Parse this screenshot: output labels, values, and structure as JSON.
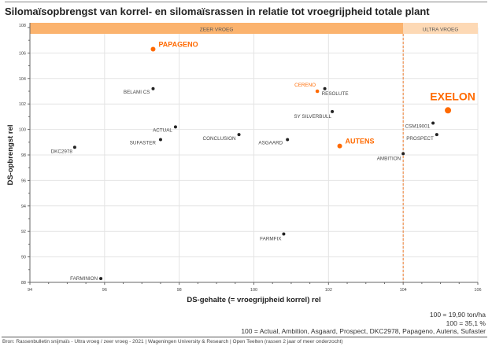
{
  "title": "Silomaïsopbrengst van korrel- en silomaïsrassen in relatie tot vroegrijpheid totale plant",
  "chart_data": {
    "type": "scatter",
    "title": "Silomaïsopbrengst van korrel- en silomaïsrassen in relatie tot vroegrijpheid totale plant",
    "xlabel": "DS-gehalte (= vroegrijpheid korrel) rel",
    "ylabel": "DS-opbrengst rel",
    "xlim": [
      94,
      106
    ],
    "ylim": [
      88,
      108
    ],
    "xticks": [
      94,
      96,
      98,
      100,
      102,
      104,
      106
    ],
    "yticks": [
      88,
      90,
      92,
      94,
      96,
      98,
      100,
      102,
      104,
      106,
      108
    ],
    "grid": true,
    "bands": [
      {
        "label": "ZEER VROEG",
        "from": 94,
        "to": 104,
        "color": "#fbb36e"
      },
      {
        "label": "ULTRA VROEG",
        "from": 104,
        "to": 106,
        "color": "#fdd9b5"
      }
    ],
    "divider_x": 104,
    "points": [
      {
        "name": "PAPAGENO",
        "x": 97.3,
        "y": 106.3,
        "highlight": "big"
      },
      {
        "name": "BELAMI CS",
        "x": 97.3,
        "y": 103.2
      },
      {
        "name": "ACTUAL",
        "x": 97.9,
        "y": 100.2
      },
      {
        "name": "SUFASTER",
        "x": 97.5,
        "y": 99.2
      },
      {
        "name": "DKC2978",
        "x": 95.2,
        "y": 98.6
      },
      {
        "name": "CONCLUSION",
        "x": 99.6,
        "y": 99.6
      },
      {
        "name": "ASGAARD",
        "x": 100.9,
        "y": 99.2
      },
      {
        "name": "CERENO",
        "x": 101.7,
        "y": 103.0,
        "highlight": "small"
      },
      {
        "name": "RESOLUTE",
        "x": 101.9,
        "y": 103.2
      },
      {
        "name": "SY SILVERBULL",
        "x": 102.1,
        "y": 101.4
      },
      {
        "name": "AUTENS",
        "x": 102.3,
        "y": 98.7,
        "highlight": "big"
      },
      {
        "name": "AMBITION",
        "x": 104.0,
        "y": 98.1
      },
      {
        "name": "CSM19001",
        "x": 104.8,
        "y": 100.5
      },
      {
        "name": "PROSPECT",
        "x": 104.9,
        "y": 99.6
      },
      {
        "name": "EXELON",
        "x": 105.2,
        "y": 101.5,
        "highlight": "huge"
      },
      {
        "name": "FARMFIX",
        "x": 100.8,
        "y": 91.8
      },
      {
        "name": "FARMINION",
        "x": 95.9,
        "y": 88.3
      }
    ],
    "colors": {
      "dot": "#222222",
      "highlight": "#ff6a00",
      "grid": "#e4e4e4",
      "divider": "#f07d2e"
    }
  },
  "notes": [
    "100 = 19,90 ton/ha",
    "100 = 35,1 %",
    "100 = Actual, Ambition, Asgaard, Prospect, DKC2978, Papageno, Autens, Sufaster"
  ],
  "source": "Bron: Rassenbulletin snijmaïs - Ultra vroeg / zeer vroeg - 2021 | Wageningen University & Research | Open Teelten (rassen 2 jaar of meer onderzocht)"
}
